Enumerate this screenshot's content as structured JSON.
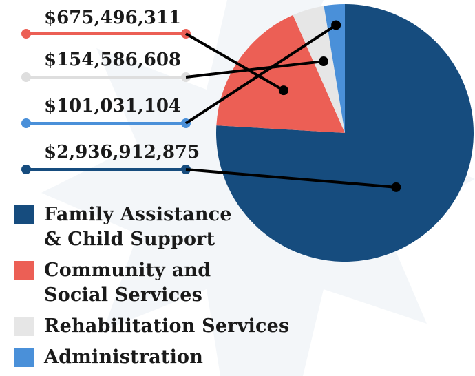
{
  "chart_data": {
    "type": "pie",
    "title": "",
    "slices": [
      {
        "label": "Family Assistance\n& Child Support",
        "value": 2936912875,
        "value_label": "$2,936,912,875",
        "color": "#164c7e"
      },
      {
        "label": "Community and\nSocial Services",
        "value": 675496311,
        "value_label": "$675,496,311",
        "color": "#ec5f55"
      },
      {
        "label": "Rehabilitation Services",
        "value": 154586608,
        "value_label": "$154,586,608",
        "color": "#e6e6e6"
      },
      {
        "label": "Administration",
        "value": 101031104,
        "value_label": "$101,031,104",
        "color": "#4a90d9"
      }
    ],
    "legend_position": "bottom-left",
    "callout_order": [
      1,
      2,
      3,
      0
    ]
  }
}
